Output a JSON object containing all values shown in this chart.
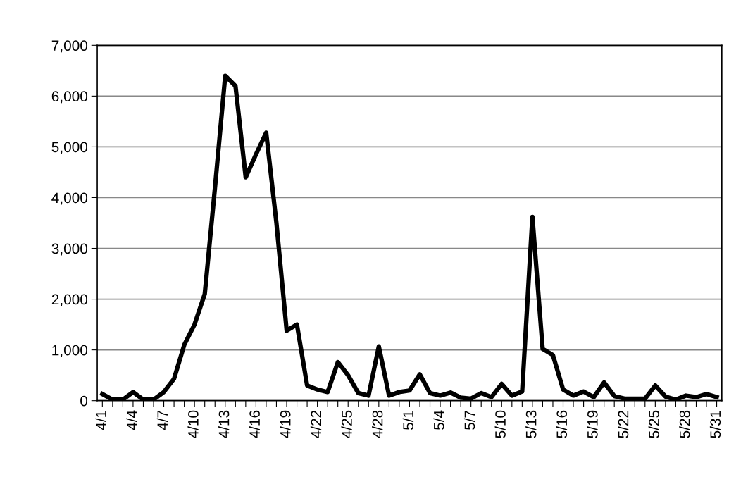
{
  "chart_data": {
    "type": "line",
    "categories": [
      "4/1",
      null,
      null,
      "4/4",
      null,
      null,
      "4/7",
      null,
      null,
      "4/10",
      null,
      null,
      "4/13",
      null,
      null,
      "4/16",
      null,
      null,
      "4/19",
      null,
      null,
      "4/22",
      null,
      null,
      "4/25",
      null,
      null,
      "4/28",
      null,
      null,
      "5/1",
      null,
      null,
      "5/4",
      null,
      null,
      "5/7",
      null,
      null,
      "5/10",
      null,
      null,
      "5/13",
      null,
      null,
      "5/16",
      null,
      null,
      "5/19",
      null,
      null,
      "5/22",
      null,
      null,
      "5/25",
      null,
      null,
      "5/28",
      null,
      null,
      "5/31"
    ],
    "series": [
      {
        "color": "#000000",
        "values": [
          130,
          20,
          20,
          170,
          20,
          20,
          170,
          430,
          1100,
          1500,
          2100,
          4200,
          6400,
          6200,
          4400,
          4850,
          5280,
          3500,
          1380,
          1500,
          300,
          220,
          170,
          760,
          500,
          150,
          100,
          1070,
          100,
          170,
          200,
          520,
          150,
          100,
          160,
          60,
          40,
          150,
          70,
          330,
          100,
          180,
          3620,
          1020,
          900,
          220,
          100,
          180,
          70,
          360,
          90,
          40,
          40,
          40,
          300,
          80,
          20,
          100,
          70,
          130,
          70
        ]
      }
    ],
    "ylim": [
      0,
      7000
    ],
    "yticks": [
      {
        "value": 0,
        "label": "0"
      },
      {
        "value": 1000,
        "label": "1,000"
      },
      {
        "value": 2000,
        "label": "2,000"
      },
      {
        "value": 3000,
        "label": "3,000"
      },
      {
        "value": 4000,
        "label": "4,000"
      },
      {
        "value": 5000,
        "label": "5,000"
      },
      {
        "value": 6000,
        "label": "6,000"
      },
      {
        "value": 7000,
        "label": "7,000"
      }
    ],
    "grid": "y",
    "marker": "none",
    "line_style": "solid"
  }
}
